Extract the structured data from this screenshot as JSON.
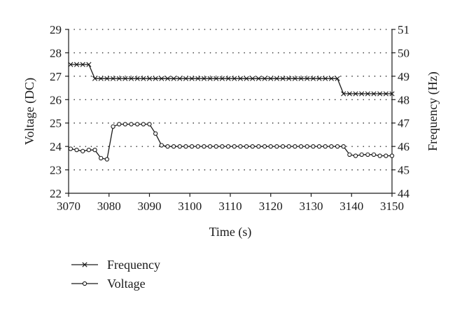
{
  "chart_data": {
    "type": "line",
    "xlabel": "Time (s)",
    "ylabel_left": "Voltage (DC)",
    "ylabel_right": "Frequency (Hz)",
    "xlim": [
      3070,
      3150
    ],
    "ylim_left": [
      22,
      29
    ],
    "ylim_right": [
      44,
      51
    ],
    "xticks": [
      3070,
      3080,
      3090,
      3100,
      3110,
      3120,
      3130,
      3140,
      3150
    ],
    "yticks_left": [
      22,
      23,
      24,
      25,
      26,
      27,
      28,
      29
    ],
    "yticks_right": [
      44,
      45,
      46,
      47,
      48,
      49,
      50,
      51
    ],
    "grid": "horizontal dotted",
    "legend_position": "bottom-left",
    "series": [
      {
        "name": "Frequency",
        "axis": "right",
        "marker": "x",
        "x": [
          3070.5,
          3072,
          3073.5,
          3075,
          3076.5,
          3078,
          3079.5,
          3081,
          3082.5,
          3084,
          3085.5,
          3087,
          3088.5,
          3090,
          3091.5,
          3093,
          3094.5,
          3096,
          3097.5,
          3099,
          3100.5,
          3102,
          3103.5,
          3105,
          3106.5,
          3108,
          3109.5,
          3111,
          3112.5,
          3114,
          3115.5,
          3117,
          3118.5,
          3120,
          3121.5,
          3123,
          3124.5,
          3126,
          3127.5,
          3129,
          3130.5,
          3132,
          3133.5,
          3135,
          3136.5,
          3138,
          3139.5,
          3141,
          3142.5,
          3144,
          3145.5,
          3147,
          3148.5,
          3150
        ],
        "values": [
          49.5,
          49.5,
          49.5,
          49.5,
          48.9,
          48.9,
          48.9,
          48.9,
          48.9,
          48.9,
          48.9,
          48.9,
          48.9,
          48.9,
          48.9,
          48.9,
          48.9,
          48.9,
          48.9,
          48.9,
          48.9,
          48.9,
          48.9,
          48.9,
          48.9,
          48.9,
          48.9,
          48.9,
          48.9,
          48.9,
          48.9,
          48.9,
          48.9,
          48.9,
          48.9,
          48.9,
          48.9,
          48.9,
          48.9,
          48.9,
          48.9,
          48.9,
          48.9,
          48.9,
          48.9,
          48.25,
          48.25,
          48.25,
          48.25,
          48.25,
          48.25,
          48.25,
          48.25,
          48.25
        ]
      },
      {
        "name": "Voltage",
        "axis": "left",
        "marker": "o",
        "x": [
          3070.5,
          3072,
          3073.5,
          3075,
          3076.5,
          3078,
          3079.5,
          3081,
          3082.5,
          3084,
          3085.5,
          3087,
          3088.5,
          3090,
          3091.5,
          3093,
          3094.5,
          3096,
          3097.5,
          3099,
          3100.5,
          3102,
          3103.5,
          3105,
          3106.5,
          3108,
          3109.5,
          3111,
          3112.5,
          3114,
          3115.5,
          3117,
          3118.5,
          3120,
          3121.5,
          3123,
          3124.5,
          3126,
          3127.5,
          3129,
          3130.5,
          3132,
          3133.5,
          3135,
          3136.5,
          3138,
          3139.5,
          3141,
          3142.5,
          3144,
          3145.5,
          3147,
          3148.5,
          3150
        ],
        "values": [
          23.9,
          23.85,
          23.8,
          23.85,
          23.85,
          23.5,
          23.45,
          24.85,
          24.95,
          24.95,
          24.95,
          24.95,
          24.95,
          24.95,
          24.55,
          24.05,
          24.0,
          24.0,
          24.0,
          24.0,
          24.0,
          24.0,
          24.0,
          24.0,
          24.0,
          24.0,
          24.0,
          24.0,
          24.0,
          24.0,
          24.0,
          24.0,
          24.0,
          24.0,
          24.0,
          24.0,
          24.0,
          24.0,
          24.0,
          24.0,
          24.0,
          24.0,
          24.0,
          24.0,
          24.0,
          24.0,
          23.65,
          23.6,
          23.65,
          23.65,
          23.65,
          23.6,
          23.6,
          23.6
        ]
      }
    ]
  }
}
